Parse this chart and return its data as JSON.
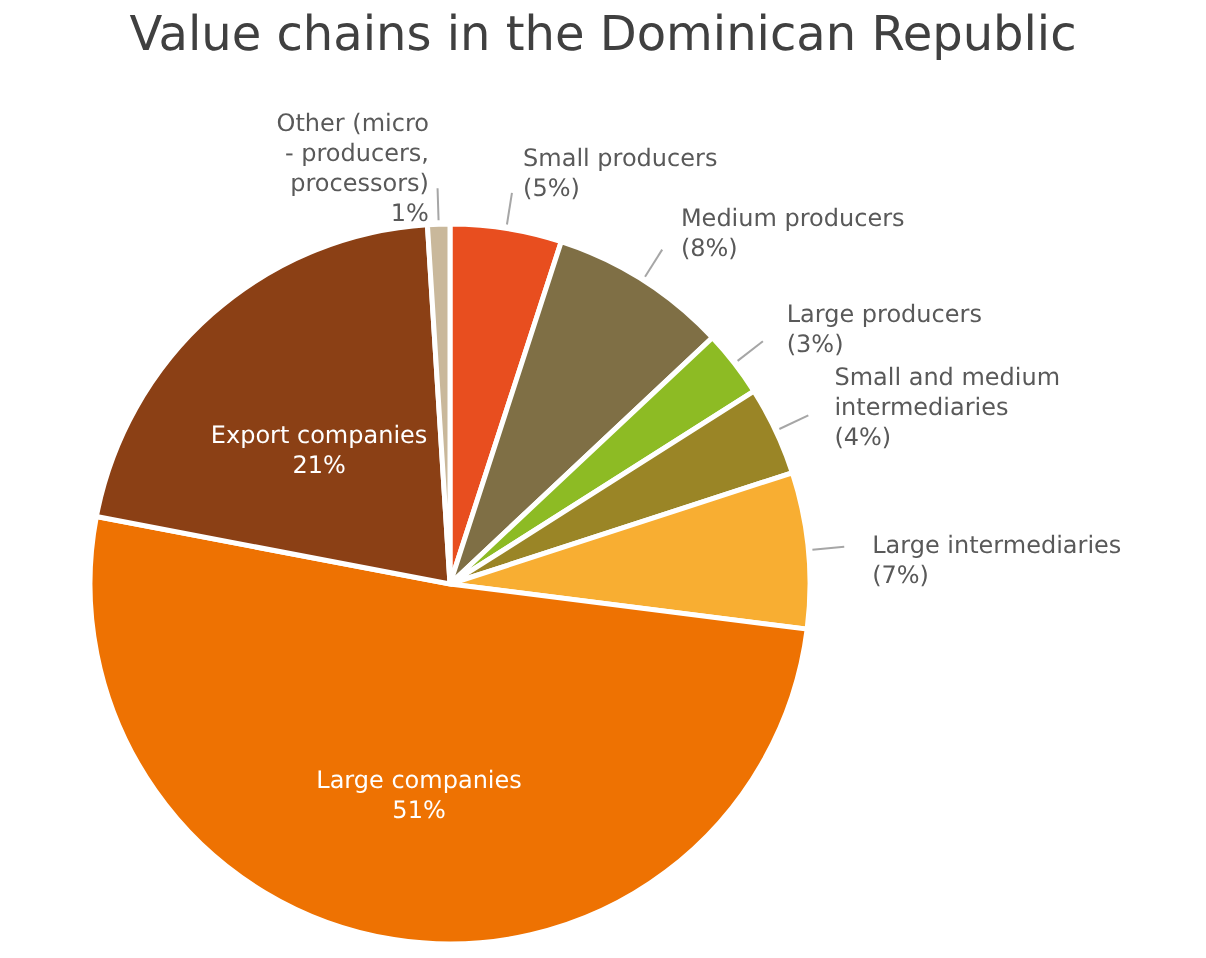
{
  "chart_data": {
    "type": "pie",
    "title": "Value chains in the Dominican Republic",
    "categories": [
      "Small producers",
      "Medium producers",
      "Large producers",
      "Small and medium\nintermediaries",
      "Large intermediaries",
      "Large companies",
      "Export companies",
      "Other (micro\n- producers,\nprocessors)"
    ],
    "values": [
      5,
      8,
      3,
      4,
      7,
      51,
      21,
      1
    ],
    "value_labels": [
      "(5%)",
      "(8%)",
      "(3%)",
      "(4%)",
      "(7%)",
      "51%",
      "21%",
      "1%"
    ],
    "colors": [
      "#e84e1f",
      "#7f6f45",
      "#8dbb24",
      "#9a8526",
      "#f8ae32",
      "#ee7202",
      "#8b4015",
      "#c9b89b"
    ]
  }
}
